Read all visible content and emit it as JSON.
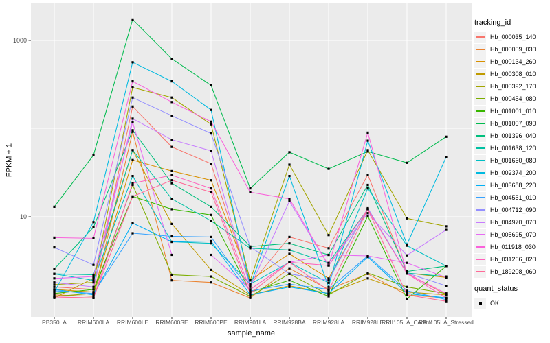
{
  "chart_data": {
    "type": "line",
    "title": "",
    "xlabel": "sample_name",
    "ylabel": "FPKM + 1",
    "y_axis": {
      "scale": "log10",
      "ticks": [
        {
          "value": 10,
          "label": "10"
        },
        {
          "value": 1000,
          "label": "1000"
        }
      ],
      "minor_gridlines": [
        1,
        100
      ],
      "range": [
        0.75,
        2500
      ]
    },
    "categories": [
      "PB350LA",
      "RRIM600LA",
      "RRIM600LE",
      "RRIM600SE",
      "RRIM600PE",
      "RRIM901LA",
      "RRIM928BA",
      "RRIM928LA",
      "RRIM928LE",
      "RRII105LA_Control",
      "RRII105LA_Stressed"
    ],
    "legend": {
      "title": "tracking_id",
      "position": "right"
    },
    "legend2": {
      "title": "quant_status",
      "items": [
        {
          "label": "OK",
          "marker": "black-square"
        }
      ]
    },
    "point_color": "#000000",
    "series": [
      {
        "name": "Hb_000035_140",
        "color": "#F8766D",
        "values": [
          1.6,
          1.5,
          178,
          62,
          40,
          1.7,
          5.9,
          4.4,
          30,
          2.3,
          1.3
        ]
      },
      {
        "name": "Hb_000059_030",
        "color": "#EA8331",
        "values": [
          1.3,
          1.25,
          92,
          1.9,
          1.8,
          1.2,
          2.6,
          1.5,
          2.25,
          1.3,
          1.2
        ]
      },
      {
        "name": "Hb_000134_260",
        "color": "#D89000",
        "values": [
          1.5,
          1.4,
          44,
          33,
          26,
          1.9,
          3.8,
          2.0,
          12.2,
          2.3,
          2.05
        ]
      },
      {
        "name": "Hb_000308_010",
        "color": "#C09B00",
        "values": [
          1.2,
          2.0,
          57,
          8.3,
          2.5,
          1.3,
          1.65,
          1.35,
          2.0,
          1.4,
          1.3
        ]
      },
      {
        "name": "Hb_000392_170",
        "color": "#A3A500",
        "values": [
          1.7,
          1.8,
          293,
          225,
          112,
          1.9,
          39,
          6.2,
          57,
          9.6,
          7.8
        ]
      },
      {
        "name": "Hb_000454_080",
        "color": "#7CAE00",
        "values": [
          1.25,
          1.35,
          23,
          2.2,
          2.1,
          1.25,
          2.25,
          1.3,
          2.3,
          1.6,
          1.35
        ]
      },
      {
        "name": "Hb_001001_010",
        "color": "#39B600",
        "values": [
          1.35,
          1.5,
          17,
          12.2,
          10.5,
          1.4,
          1.9,
          1.25,
          10.2,
          1.17,
          2.76
        ]
      },
      {
        "name": "Hb_001007_090",
        "color": "#00BB4E",
        "values": [
          13,
          50,
          1730,
          620,
          310,
          21,
          54,
          35,
          55,
          41,
          81
        ]
      },
      {
        "name": "Hb_001396_040",
        "color": "#00BF7D",
        "values": [
          2.56,
          7.6,
          96,
          24,
          13,
          4.6,
          5.0,
          3.7,
          23,
          2.4,
          2.76
        ]
      },
      {
        "name": "Hb_001638_120",
        "color": "#00C1A3",
        "values": [
          2.25,
          2.2,
          57,
          16,
          9,
          4.4,
          4.2,
          3.0,
          12.2,
          2.3,
          2.1
        ]
      },
      {
        "name": "Hb_001660_080",
        "color": "#00BFC4",
        "values": [
          2.25,
          1.9,
          29,
          5.2,
          5.0,
          1.72,
          3.05,
          1.78,
          21,
          4.7,
          2.76
        ]
      },
      {
        "name": "Hb_002374_200",
        "color": "#00BAE0",
        "values": [
          1.4,
          8.7,
          566,
          344,
          163,
          1.65,
          29,
          1.6,
          73,
          4.85,
          47.5
        ]
      },
      {
        "name": "Hb_003688_220",
        "color": "#00B0F6",
        "values": [
          1.5,
          1.3,
          8.5,
          5.2,
          5.3,
          1.3,
          1.6,
          1.35,
          3.5,
          1.35,
          1.2
        ]
      },
      {
        "name": "Hb_004551_010",
        "color": "#35A2FF",
        "values": [
          1.45,
          1.35,
          6.5,
          6.0,
          5.9,
          1.44,
          1.72,
          1.5,
          3.6,
          1.45,
          1.15
        ]
      },
      {
        "name": "Hb_004712_090",
        "color": "#9590FF",
        "values": [
          4.5,
          2.84,
          225,
          140,
          88,
          4.57,
          2.25,
          1.9,
          12.5,
          2.3,
          1.65
        ]
      },
      {
        "name": "Hb_004970_070",
        "color": "#C77CFF",
        "values": [
          1.8,
          1.6,
          130,
          75,
          56,
          1.6,
          15,
          2.8,
          11,
          3.65,
          7.1
        ]
      },
      {
        "name": "Hb_005695_070",
        "color": "#E76BF3",
        "values": [
          2.0,
          2.1,
          118,
          3.7,
          3.7,
          1.5,
          3.05,
          3.7,
          3.6,
          3.0,
          2.05
        ]
      },
      {
        "name": "Hb_011918_030",
        "color": "#FA62DB",
        "values": [
          5.8,
          5.7,
          344,
          200,
          120,
          19,
          16,
          2.8,
          90,
          2.27,
          1.35
        ]
      },
      {
        "name": "Hb_031266_020",
        "color": "#FF62BC",
        "values": [
          1.23,
          1.2,
          24,
          29.6,
          21,
          1.5,
          3.05,
          2.8,
          12.2,
          2.27,
          1.2
        ]
      },
      {
        "name": "Hb_189208_060",
        "color": "#FF6A98",
        "values": [
          1.23,
          1.2,
          17,
          26,
          19,
          1.35,
          3.05,
          1.45,
          12.2,
          1.3,
          1.1
        ]
      }
    ]
  }
}
